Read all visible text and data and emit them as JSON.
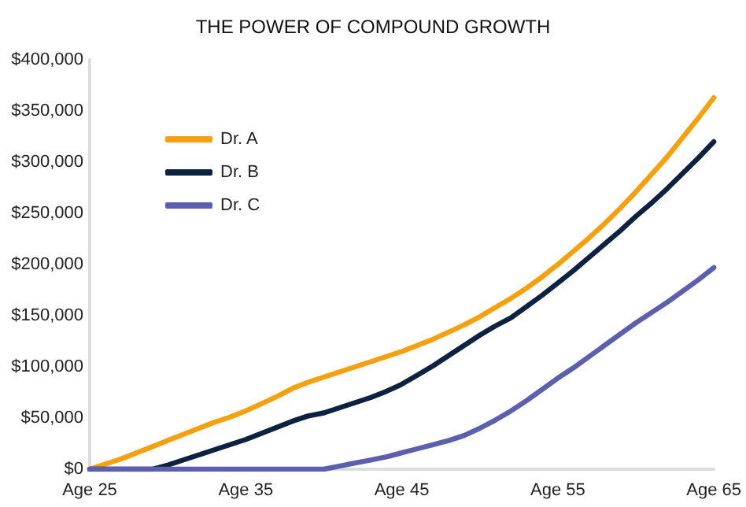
{
  "chart_data": {
    "type": "line",
    "title": "THE POWER OF COMPOUND GROWTH",
    "categories": [
      "Age 25",
      null,
      null,
      null,
      null,
      null,
      null,
      null,
      null,
      null,
      "Age 35",
      null,
      null,
      null,
      null,
      null,
      null,
      null,
      null,
      null,
      "Age 45",
      null,
      null,
      null,
      null,
      null,
      null,
      null,
      null,
      null,
      "Age 55",
      null,
      null,
      null,
      null,
      null,
      null,
      null,
      null,
      null,
      "Age 65"
    ],
    "series": [
      {
        "name": "Dr. A",
        "color": "#f5a00f",
        "values": [
          0,
          5000,
          10000,
          16000,
          22000,
          28000,
          34000,
          40000,
          46000,
          51000,
          57000,
          64000,
          71000,
          79000,
          85000,
          90000,
          95000,
          100000,
          105000,
          110000,
          115000,
          121000,
          127000,
          134000,
          141000,
          149000,
          158000,
          167000,
          177000,
          188000,
          200000,
          213000,
          226000,
          240000,
          255000,
          271000,
          288000,
          305000,
          324000,
          343000,
          363000
        ]
      },
      {
        "name": "Dr. B",
        "color": "#0d2240",
        "values": [
          0,
          0,
          0,
          0,
          0,
          4000,
          9000,
          14000,
          19000,
          24000,
          29000,
          35000,
          41000,
          47000,
          52000,
          55000,
          60000,
          65000,
          70000,
          76000,
          83000,
          92000,
          101000,
          111000,
          121000,
          131000,
          140000,
          148000,
          159000,
          170000,
          182000,
          194000,
          207000,
          220000,
          233000,
          247000,
          260000,
          274000,
          289000,
          304000,
          320000
        ]
      },
      {
        "name": "Dr. C",
        "color": "#5b5fae",
        "values": [
          0,
          0,
          0,
          0,
          0,
          0,
          0,
          0,
          0,
          0,
          0,
          0,
          0,
          0,
          0,
          0,
          3000,
          6000,
          9000,
          12000,
          16000,
          20000,
          24000,
          28000,
          33000,
          40000,
          48000,
          57000,
          67000,
          78000,
          89000,
          99000,
          110000,
          121000,
          132000,
          143000,
          153000,
          163000,
          174000,
          185000,
          197000
        ]
      }
    ],
    "ylim": [
      0,
      400000
    ],
    "yticks": [
      {
        "value": 0,
        "label": "$0"
      },
      {
        "value": 50000,
        "label": "$50,000"
      },
      {
        "value": 100000,
        "label": "$100,000"
      },
      {
        "value": 150000,
        "label": "$150,000"
      },
      {
        "value": 200000,
        "label": "$200,000"
      },
      {
        "value": 250000,
        "label": "$250,000"
      },
      {
        "value": 300000,
        "label": "$300,000"
      },
      {
        "value": 350000,
        "label": "$350,000"
      },
      {
        "value": 400000,
        "label": "$400,000"
      }
    ],
    "grid": false,
    "legend": "top left",
    "marker": "none",
    "line_style": "solid"
  }
}
